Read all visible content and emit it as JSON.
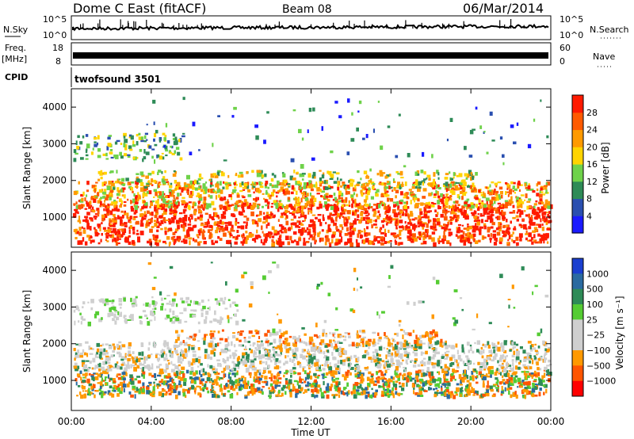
{
  "header": {
    "station": "Dome C East (fitACF)",
    "beam": "Beam 08",
    "date": "06/Mar/2014"
  },
  "strip_labels": {
    "nsky": "N.Sky",
    "freq": "Freq.",
    "freq_unit": "[MHz]",
    "cpid": "CPID",
    "nsearch": "N.Search",
    "nave": "Nave",
    "cpid_value": "twofsound 3501"
  },
  "strip_ticks": {
    "nsky_left": [
      "10^5",
      "10^0"
    ],
    "nsky_right": [
      "10^5",
      "10^0"
    ],
    "freq_left": [
      "18",
      "8"
    ],
    "nave_right": [
      "60",
      "0"
    ]
  },
  "colors": {
    "power_scale": [
      "#1a1aff",
      "#2a4fb0",
      "#2e8b57",
      "#6fd24a",
      "#ffd400",
      "#ff9a00",
      "#ff5a00",
      "#ff1a00"
    ],
    "velocity_scale": [
      "#ff0000",
      "#ff5500",
      "#ff9900",
      "#cfcfcf",
      "#cfcfcf",
      "#55cc33",
      "#2e8b57",
      "#2a6aa0",
      "#1a3fcf"
    ]
  },
  "chart_data": [
    {
      "type": "heatmap",
      "title": "Power",
      "x": [
        "00:00",
        "04:00",
        "08:00",
        "12:00",
        "16:00",
        "20:00",
        "00:00"
      ],
      "xlabel": "Time UT",
      "ylabel": "Slant Range [km]",
      "yticks": [
        "1000",
        "2000",
        "3000",
        "4000"
      ],
      "ylim": [
        180,
        4500
      ],
      "colorbar_label": "Power [dB]",
      "colorbar_ticks": [
        "4",
        "8",
        "12",
        "16",
        "20",
        "24",
        "28"
      ]
    },
    {
      "type": "heatmap",
      "title": "Velocity",
      "x": [
        "00:00",
        "04:00",
        "08:00",
        "12:00",
        "16:00",
        "20:00",
        "00:00"
      ],
      "xlabel": "Time UT",
      "ylabel": "Slant Range [km]",
      "yticks": [
        "1000",
        "2000",
        "3000",
        "4000"
      ],
      "ylim": [
        180,
        4500
      ],
      "colorbar_label": "Velocity [m s⁻¹]",
      "colorbar_ticks": [
        "1000",
        "500",
        "100",
        "25",
        "−25",
        "−100",
        "−500",
        "−1000"
      ]
    }
  ]
}
